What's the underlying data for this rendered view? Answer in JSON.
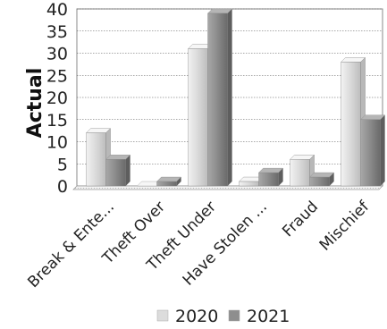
{
  "chart_data": {
    "type": "bar",
    "ylabel": "Actual",
    "ylim": [
      0,
      40
    ],
    "yticks": [
      0,
      5,
      10,
      15,
      20,
      25,
      30,
      35,
      40
    ],
    "categories": [
      "Break & Ente...",
      "Theft Over",
      "Theft Under",
      "Have Stolen ...",
      "Fraud",
      "Mischief"
    ],
    "series": [
      {
        "name": "2020",
        "values": [
          12,
          0,
          31,
          1,
          6,
          28
        ],
        "color": "#dcdcdc"
      },
      {
        "name": "2021",
        "values": [
          6,
          1,
          39,
          3,
          2,
          15
        ],
        "color": "#8e8e8e"
      }
    ],
    "grid": true,
    "legend": "bottom"
  }
}
